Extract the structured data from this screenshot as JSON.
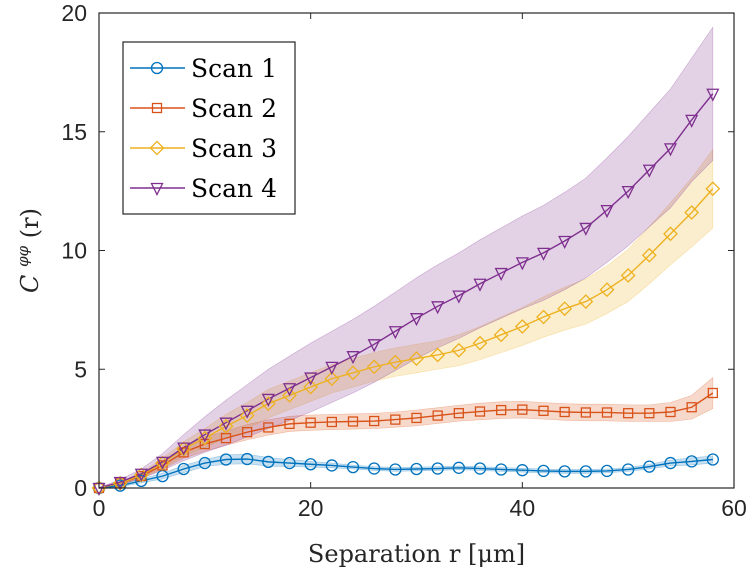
{
  "chart_data": {
    "type": "line",
    "title": "",
    "xlabel": "Separation r [μm]",
    "ylabel": "C^φφ(r)",
    "ylabel_main": "C",
    "ylabel_sup": "φφ",
    "ylabel_arg": "(r)",
    "xlim": [
      0,
      60
    ],
    "ylim": [
      0,
      20
    ],
    "x_ticks": [
      0,
      20,
      40,
      60
    ],
    "y_ticks": [
      0,
      5,
      10,
      15,
      20
    ],
    "grid": false,
    "legend_position": "top-left",
    "x": [
      0,
      2,
      4,
      6,
      8,
      10,
      12,
      14,
      16,
      18,
      20,
      22,
      24,
      26,
      28,
      30,
      32,
      34,
      36,
      38,
      40,
      42,
      44,
      46,
      48,
      50,
      52,
      54,
      56,
      58
    ],
    "series": [
      {
        "name": "Scan 1",
        "marker": "circle",
        "color": "#0072BD",
        "values": [
          0,
          0.1,
          0.3,
          0.5,
          0.8,
          1.05,
          1.2,
          1.22,
          1.1,
          1.05,
          1.0,
          0.95,
          0.88,
          0.82,
          0.78,
          0.8,
          0.82,
          0.85,
          0.82,
          0.78,
          0.75,
          0.72,
          0.7,
          0.7,
          0.72,
          0.78,
          0.9,
          1.05,
          1.12,
          1.2
        ],
        "band": [
          0.02,
          0.05,
          0.08,
          0.12,
          0.15,
          0.15,
          0.2,
          0.2,
          0.18,
          0.15,
          0.12,
          0.1,
          0.08,
          0.08,
          0.08,
          0.08,
          0.08,
          0.08,
          0.08,
          0.08,
          0.08,
          0.08,
          0.08,
          0.08,
          0.08,
          0.08,
          0.1,
          0.12,
          0.15,
          0.15
        ]
      },
      {
        "name": "Scan 2",
        "marker": "square",
        "color": "#D95319",
        "values": [
          0,
          0.2,
          0.5,
          0.95,
          1.5,
          1.85,
          2.1,
          2.35,
          2.55,
          2.7,
          2.75,
          2.78,
          2.8,
          2.82,
          2.88,
          2.95,
          3.05,
          3.15,
          3.22,
          3.28,
          3.3,
          3.25,
          3.2,
          3.18,
          3.18,
          3.15,
          3.15,
          3.2,
          3.4,
          4.0
        ],
        "band": [
          0.02,
          0.05,
          0.1,
          0.15,
          0.25,
          0.3,
          0.3,
          0.32,
          0.32,
          0.32,
          0.32,
          0.32,
          0.32,
          0.32,
          0.32,
          0.33,
          0.33,
          0.33,
          0.35,
          0.35,
          0.35,
          0.35,
          0.35,
          0.35,
          0.35,
          0.35,
          0.35,
          0.4,
          0.5,
          0.65
        ]
      },
      {
        "name": "Scan 3",
        "marker": "diamond",
        "color": "#EDB120",
        "values": [
          0,
          0.2,
          0.55,
          1.05,
          1.65,
          2.1,
          2.6,
          3.05,
          3.55,
          3.9,
          4.25,
          4.6,
          4.85,
          5.1,
          5.3,
          5.45,
          5.6,
          5.8,
          6.1,
          6.45,
          6.8,
          7.2,
          7.55,
          7.85,
          8.35,
          8.95,
          9.8,
          10.7,
          11.6,
          12.6
        ],
        "band": [
          0.02,
          0.05,
          0.1,
          0.2,
          0.3,
          0.4,
          0.5,
          0.55,
          0.6,
          0.6,
          0.6,
          0.6,
          0.6,
          0.6,
          0.6,
          0.6,
          0.6,
          0.65,
          0.7,
          0.75,
          0.8,
          0.85,
          0.9,
          0.95,
          1.0,
          1.1,
          1.2,
          1.3,
          1.45,
          1.65
        ]
      },
      {
        "name": "Scan 4",
        "marker": "triangle-down",
        "color": "#7E2F8E",
        "values": [
          0,
          0.25,
          0.6,
          1.1,
          1.7,
          2.25,
          2.75,
          3.25,
          3.75,
          4.2,
          4.65,
          5.1,
          5.55,
          6.05,
          6.6,
          7.15,
          7.65,
          8.1,
          8.6,
          9.05,
          9.5,
          9.9,
          10.4,
          10.95,
          11.7,
          12.5,
          13.4,
          14.3,
          15.5,
          16.6
        ],
        "band": [
          0.02,
          0.1,
          0.2,
          0.35,
          0.55,
          0.75,
          0.95,
          1.1,
          1.25,
          1.35,
          1.45,
          1.5,
          1.55,
          1.6,
          1.65,
          1.7,
          1.75,
          1.8,
          1.85,
          1.9,
          1.95,
          2.0,
          2.05,
          2.1,
          2.2,
          2.3,
          2.4,
          2.5,
          2.6,
          2.8
        ]
      }
    ]
  }
}
